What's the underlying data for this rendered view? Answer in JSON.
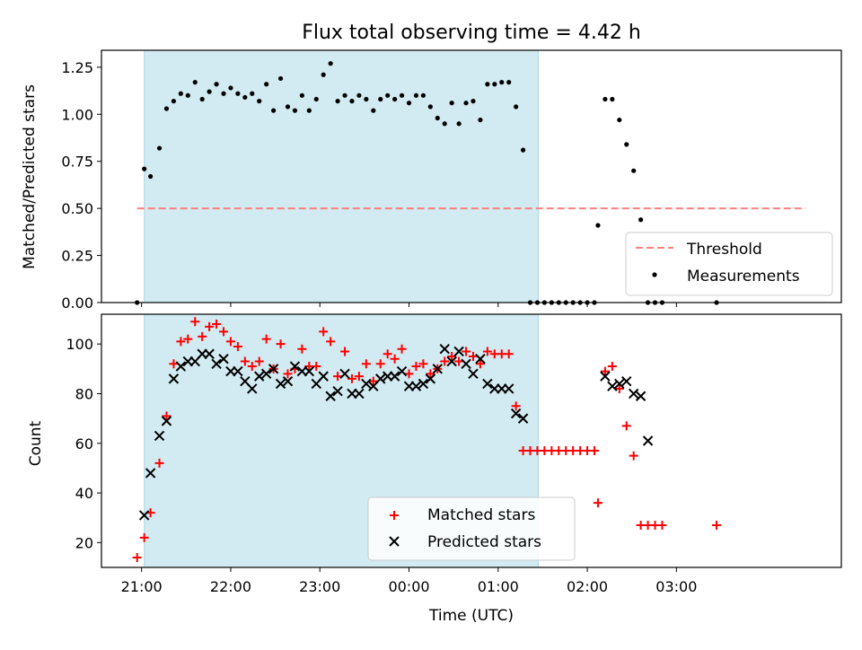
{
  "title": "Flux total observing time = 4.42 h",
  "shaded_color": "#add8e6",
  "chart_data": [
    {
      "type": "scatter",
      "panel": "top",
      "ylabel": "Matched/Predicted stars",
      "ylim": [
        0,
        1.34
      ],
      "yticks": [
        0.0,
        0.25,
        0.5,
        0.75,
        1.0,
        1.25
      ],
      "ytick_labels": [
        "0.00",
        "0.25",
        "0.50",
        "0.75",
        "1.00",
        "1.25"
      ],
      "xlim": [
        20.55,
        28.85
      ],
      "shaded_span": [
        21.03,
        25.45
      ],
      "threshold": {
        "name": "Threshold",
        "value": 0.5,
        "x_range": [
          20.95,
          28.45
        ],
        "color": "#ff7f7f"
      },
      "legend": {
        "position": "lower-right",
        "entries": [
          "Threshold",
          "Measurements"
        ]
      },
      "series": [
        {
          "name": "Measurements",
          "color": "#000000",
          "x": [
            20.95,
            21.03,
            21.1,
            21.2,
            21.28,
            21.36,
            21.44,
            21.52,
            21.6,
            21.68,
            21.76,
            21.84,
            21.92,
            22.0,
            22.08,
            22.16,
            22.24,
            22.32,
            22.4,
            22.48,
            22.56,
            22.64,
            22.72,
            22.8,
            22.88,
            22.96,
            23.04,
            23.12,
            23.2,
            23.28,
            23.36,
            23.44,
            23.52,
            23.6,
            23.68,
            23.76,
            23.84,
            23.92,
            24.0,
            24.08,
            24.16,
            24.24,
            24.32,
            24.4,
            24.48,
            24.56,
            24.64,
            24.72,
            24.8,
            24.88,
            24.96,
            25.04,
            25.12,
            25.2,
            25.28,
            25.36,
            25.44,
            25.52,
            25.6,
            25.68,
            25.76,
            25.84,
            25.92,
            26.0,
            26.08,
            26.12,
            26.2,
            26.28,
            26.36,
            26.44,
            26.52,
            26.6,
            26.68,
            26.76,
            26.84,
            27.45
          ],
          "y": [
            0.0,
            0.71,
            0.67,
            0.82,
            1.03,
            1.07,
            1.11,
            1.1,
            1.17,
            1.08,
            1.12,
            1.16,
            1.11,
            1.14,
            1.11,
            1.09,
            1.11,
            1.07,
            1.16,
            1.02,
            1.19,
            1.04,
            1.02,
            1.1,
            1.02,
            1.08,
            1.21,
            1.27,
            1.07,
            1.1,
            1.07,
            1.1,
            1.08,
            1.02,
            1.08,
            1.1,
            1.08,
            1.1,
            1.06,
            1.1,
            1.1,
            1.04,
            0.98,
            0.95,
            1.06,
            0.95,
            1.06,
            1.07,
            0.97,
            1.16,
            1.16,
            1.17,
            1.17,
            1.04,
            0.81,
            0.0,
            0.0,
            0.0,
            0.0,
            0.0,
            0.0,
            0.0,
            0.0,
            0.0,
            0.0,
            0.41,
            1.08,
            1.08,
            0.97,
            0.84,
            0.7,
            0.44,
            0.0,
            0.0,
            0.0,
            0.0
          ]
        }
      ]
    },
    {
      "type": "scatter",
      "panel": "bottom",
      "ylabel": "Count",
      "xlabel": "Time (UTC)",
      "ylim": [
        10,
        112
      ],
      "yticks": [
        20,
        40,
        60,
        80,
        100
      ],
      "ytick_labels": [
        "20",
        "40",
        "60",
        "80",
        "100"
      ],
      "xlim": [
        20.55,
        28.85
      ],
      "xticks": [
        21,
        22,
        23,
        24,
        25,
        26,
        27
      ],
      "xtick_labels": [
        "21:00",
        "22:00",
        "23:00",
        "00:00",
        "01:00",
        "02:00",
        "03:00"
      ],
      "shaded_span": [
        21.03,
        25.45
      ],
      "legend": {
        "position": "lower-center",
        "entries": [
          "Matched stars",
          "Predicted stars"
        ]
      },
      "series": [
        {
          "name": "Matched stars",
          "marker": "plus",
          "color": "#ff0000",
          "x": [
            20.95,
            21.03,
            21.1,
            21.2,
            21.28,
            21.36,
            21.44,
            21.52,
            21.6,
            21.68,
            21.76,
            21.84,
            21.92,
            22.0,
            22.08,
            22.16,
            22.24,
            22.32,
            22.4,
            22.48,
            22.56,
            22.64,
            22.72,
            22.8,
            22.88,
            22.96,
            23.04,
            23.12,
            23.2,
            23.28,
            23.36,
            23.44,
            23.52,
            23.6,
            23.68,
            23.76,
            23.84,
            23.92,
            24.0,
            24.08,
            24.16,
            24.24,
            24.32,
            24.4,
            24.48,
            24.56,
            24.64,
            24.72,
            24.8,
            24.88,
            24.96,
            25.04,
            25.12,
            25.2,
            25.28,
            25.36,
            25.44,
            25.52,
            25.6,
            25.68,
            25.76,
            25.84,
            25.92,
            26.0,
            26.08,
            26.12,
            26.2,
            26.28,
            26.36,
            26.44,
            26.52,
            26.6,
            26.68,
            26.76,
            26.84,
            27.45
          ],
          "y": [
            14,
            22,
            32,
            52,
            71,
            92,
            101,
            102,
            109,
            103,
            107,
            108,
            105,
            101,
            99,
            93,
            91,
            93,
            102,
            90,
            100,
            88,
            90,
            98,
            91,
            91,
            105,
            101,
            87,
            97,
            86,
            87,
            92,
            85,
            92,
            96,
            94,
            98,
            88,
            91,
            92,
            88,
            90,
            93,
            95,
            93,
            97,
            95,
            92,
            97,
            96,
            96,
            96,
            75,
            57,
            57,
            57,
            57,
            57,
            57,
            57,
            57,
            57,
            57,
            57,
            36,
            89,
            91,
            82,
            67,
            55,
            27,
            27,
            27,
            27,
            27
          ]
        },
        {
          "name": "Predicted stars",
          "marker": "x",
          "color": "#000000",
          "x": [
            21.03,
            21.1,
            21.2,
            21.28,
            21.36,
            21.44,
            21.52,
            21.6,
            21.68,
            21.76,
            21.84,
            21.92,
            22.0,
            22.08,
            22.16,
            22.24,
            22.32,
            22.4,
            22.48,
            22.56,
            22.64,
            22.72,
            22.8,
            22.88,
            22.96,
            23.04,
            23.12,
            23.2,
            23.28,
            23.36,
            23.44,
            23.52,
            23.6,
            23.68,
            23.76,
            23.84,
            23.92,
            24.0,
            24.08,
            24.16,
            24.24,
            24.32,
            24.4,
            24.48,
            24.56,
            24.64,
            24.72,
            24.8,
            24.88,
            24.96,
            25.04,
            25.12,
            25.2,
            25.28,
            26.2,
            26.28,
            26.36,
            26.44,
            26.52,
            26.6,
            26.68
          ],
          "y": [
            31,
            48,
            63,
            69,
            86,
            91,
            93,
            93,
            96,
            96,
            92,
            94,
            89,
            89,
            85,
            82,
            87,
            88,
            90,
            84,
            85,
            91,
            89,
            89,
            84,
            87,
            79,
            81,
            88,
            80,
            80,
            84,
            83,
            86,
            87,
            87,
            89,
            83,
            83,
            84,
            86,
            90,
            98,
            93,
            97,
            92,
            88,
            94,
            84,
            82,
            82,
            82,
            72,
            70,
            87,
            83,
            84,
            85,
            80,
            79,
            61
          ]
        }
      ]
    }
  ]
}
